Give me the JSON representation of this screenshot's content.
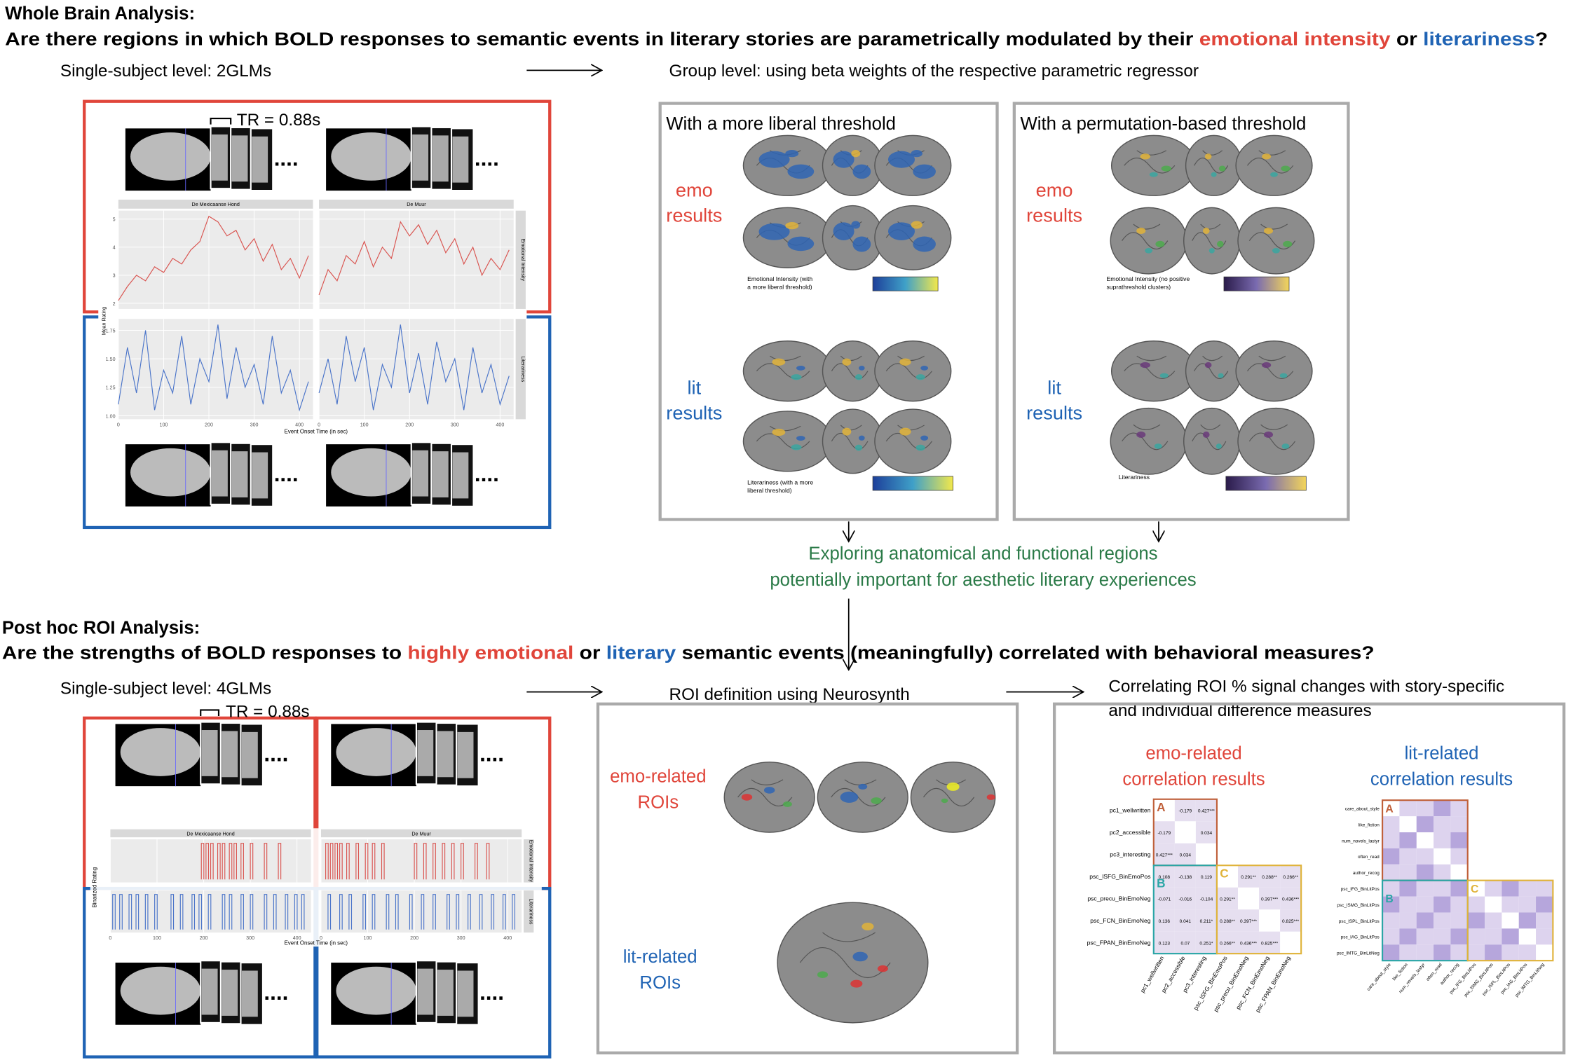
{
  "section1": {
    "title": "Whole Brain Analysis:",
    "question": [
      "Are there regions in which BOLD responses to semantic events in literary stories are parametrically modulated by their ",
      "emotional intensity",
      " or ",
      "literariness",
      "?"
    ],
    "single_subject": "Single-subject level: 2GLMs",
    "group": "Group level: using beta weights of the respective parametric regressor",
    "tr": "TR = 0.88s",
    "ellipsis": "....",
    "plot": {
      "stories": [
        "De Mexicaanse Hond",
        "De Muur"
      ],
      "facets": [
        "Emotional Intensity",
        "Literariness"
      ],
      "y_label": "Mean Rating",
      "x_label": "Event Onset Time (in sec)",
      "xlim": [
        0,
        430
      ],
      "xticks": [
        0,
        100,
        200,
        300,
        400
      ],
      "x": [
        0,
        20,
        40,
        60,
        80,
        100,
        120,
        140,
        160,
        180,
        200,
        220,
        240,
        260,
        280,
        300,
        320,
        340,
        360,
        380,
        400,
        420
      ],
      "emo": {
        "ylim": [
          1.8,
          5.3
        ],
        "yticks": [
          2,
          3,
          4,
          5
        ],
        "values": [
          [
            2.1,
            2.6,
            3.0,
            2.8,
            3.3,
            3.1,
            3.6,
            3.4,
            3.9,
            4.2,
            5.1,
            4.9,
            4.4,
            4.6,
            3.9,
            4.3,
            3.5,
            4.1,
            3.2,
            3.6,
            2.9,
            3.7
          ],
          [
            2.3,
            3.2,
            2.8,
            3.7,
            3.4,
            4.2,
            3.3,
            4.0,
            3.6,
            4.9,
            4.4,
            4.8,
            4.1,
            4.6,
            3.8,
            4.3,
            3.4,
            4.0,
            3.0,
            3.6,
            3.2,
            3.9
          ]
        ]
      },
      "lit": {
        "ylim": [
          0.97,
          1.85
        ],
        "yticks": [
          {
            "value": 1,
            "label": "1.00"
          },
          1.25,
          {
            "value": 1.5,
            "label": "1.50"
          },
          1.75
        ],
        "values": [
          [
            1.1,
            1.6,
            1.2,
            1.75,
            1.05,
            1.4,
            1.2,
            1.7,
            1.1,
            1.5,
            1.3,
            1.8,
            1.15,
            1.6,
            1.25,
            1.45,
            1.1,
            1.7,
            1.2,
            1.4,
            1.05,
            1.3
          ],
          [
            1.2,
            1.5,
            1.1,
            1.7,
            1.3,
            1.6,
            1.05,
            1.45,
            1.25,
            1.8,
            1.2,
            1.55,
            1.1,
            1.65,
            1.3,
            1.5,
            1.05,
            1.6,
            1.2,
            1.45,
            1.1,
            1.35
          ]
        ]
      }
    },
    "panels": [
      {
        "title": "With a more liberal threshold",
        "emo": [
          "emo",
          "results"
        ],
        "lit": [
          "lit",
          "results"
        ],
        "emo_caption": [
          "Emotional Intensity (with",
          "a more liberal threshold)"
        ],
        "lit_caption": [
          "Literariness (with a more",
          "liberal threshold)"
        ]
      },
      {
        "title": "With a permutation-based threshold",
        "emo": [
          "emo",
          "results"
        ],
        "lit": [
          "lit",
          "results"
        ],
        "emo_caption": [
          "Emotional Intensity (no positive",
          "suprathreshold clusters)"
        ],
        "lit_caption": [
          "Literariness"
        ]
      }
    ]
  },
  "bridge": [
    "Exploring anatomical and functional regions",
    "potentially important for aesthetic literary experiences"
  ],
  "section2": {
    "title": "Post hoc ROI Analysis:",
    "question": [
      "Are the strengths of BOLD responses to ",
      "highly emotional",
      " or ",
      "literary",
      " semantic events (meaningfully) correlated with behavioral measures?"
    ],
    "single_subject": "Single-subject level: 4GLMs",
    "roi": "ROI definition using Neurosynth",
    "correlating": [
      "Correlating ROI % signal changes with story-specific",
      "and individual difference measures"
    ],
    "tr": "TR = 0.88s",
    "ellipsis": "....",
    "plot": {
      "stories": [
        "De Mexicaanse Hond",
        "De Muur"
      ],
      "facets": [
        "Emotional Intensity",
        "Literariness"
      ],
      "y_label": "Binarized Rating",
      "x_label": "Event Onset Time (in sec)",
      "xlim": [
        0,
        430
      ],
      "xticks": [
        0,
        100,
        200,
        300,
        400
      ],
      "emo": {
        "onsets": [
          [
            195,
            205,
            215,
            230,
            240,
            255,
            265,
            280,
            300,
            330,
            360
          ],
          [
            10,
            20,
            30,
            40,
            55,
            75,
            95,
            110,
            130,
            200,
            220,
            240,
            260,
            280,
            300,
            330,
            355
          ]
        ]
      },
      "lit": {
        "onsets": [
          [
            5,
            20,
            40,
            55,
            75,
            95,
            130,
            150,
            175,
            190,
            210,
            240,
            255,
            280,
            300,
            330,
            350,
            375,
            395,
            410
          ],
          [
            15,
            40,
            60,
            90,
            110,
            140,
            160,
            190,
            215,
            240,
            270,
            290,
            315,
            340,
            365,
            390,
            410
          ]
        ]
      }
    },
    "roi_labels": {
      "emo": [
        "emo-related",
        "ROIs"
      ],
      "lit": [
        "lit-related",
        "ROIs"
      ]
    },
    "corr": {
      "emo": {
        "title": [
          "emo-related",
          "correlation results"
        ],
        "blocks": [
          "A",
          "B",
          "C"
        ],
        "labels": [
          "pc1_wellwritten",
          "pc2_accessible",
          "pc3_interesting",
          "psc_lSFG_BinEmoPos",
          "psc_precu_BinEmoNeg",
          "psc_FCN_BinEmoNeg",
          "psc_FPAN_BinEmoNeg"
        ],
        "cells": [
          [
            null,
            "-0.179",
            "0.427***",
            null,
            null,
            null,
            null
          ],
          [
            "-0.179",
            null,
            "0.034",
            null,
            null,
            null,
            null
          ],
          [
            "0.427***",
            "0.034",
            null,
            null,
            null,
            null,
            null
          ],
          [
            "0.108",
            "-0.138",
            "0.119",
            null,
            "0.291**",
            "0.288**",
            "0.266**"
          ],
          [
            "-0.071",
            "-0.016",
            "-0.104",
            "0.291**",
            null,
            "0.397***",
            "0.436***"
          ],
          [
            "0.136",
            "0.041",
            "0.211*",
            "0.288**",
            "0.397***",
            null,
            "0.825***"
          ],
          [
            "0.123",
            "0.07",
            "0.251*",
            "0.266**",
            "0.436***",
            "0.825***",
            null
          ]
        ]
      },
      "lit": {
        "title": [
          "lit-related",
          "correlation results"
        ],
        "blocks": [
          "A",
          "B",
          "C"
        ],
        "labels": [
          "care_about_style",
          "like_fiction",
          "num_novels_lastyr",
          "often_read",
          "author_recog",
          "psc_IFG_BinLitPos",
          "psc_lSMG_BinLitPos",
          "psc_lSPL_BinLitPos",
          "psc_lAG_BinLitPos",
          "psc_lMTG_BinLitNeg"
        ]
      }
    }
  }
}
